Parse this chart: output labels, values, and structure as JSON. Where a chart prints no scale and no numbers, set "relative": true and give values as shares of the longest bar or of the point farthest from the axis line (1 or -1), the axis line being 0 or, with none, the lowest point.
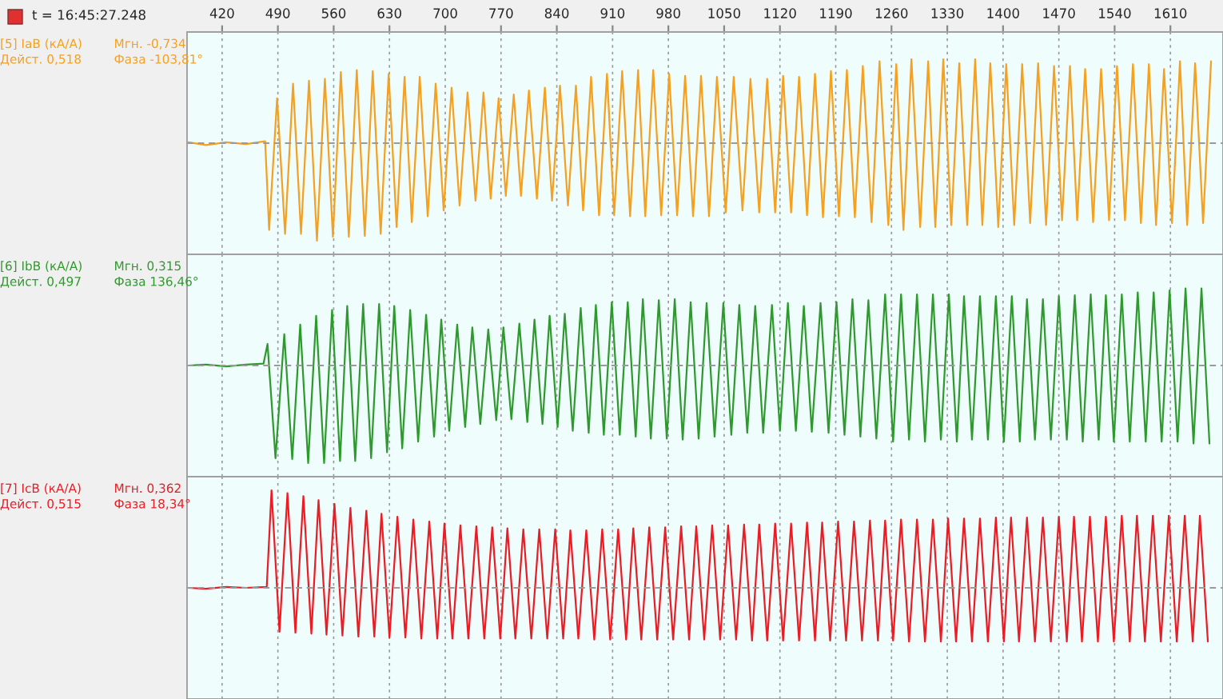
{
  "chart_data": [
    {
      "type": "line",
      "title": "t = 16:45:27.248",
      "relative": true,
      "xlim": [
        376,
        1676
      ],
      "xticks": [
        420,
        490,
        560,
        630,
        700,
        770,
        840,
        910,
        980,
        1050,
        1120,
        1190,
        1260,
        1330,
        1400,
        1470,
        1540,
        1610
      ],
      "tick_labels": "x",
      "grid": "x",
      "ref_lines": [
        {
          "axis": "y",
          "value": 0,
          "line_style": "dashed",
          "color": "#9a9a9a"
        }
      ],
      "annotations": [
        "Мгн. -0,734",
        "Дейст. 0,518",
        "Фаза -103,81°"
      ],
      "series": [
        {
          "name": "[5] IaB (кА/А)",
          "color": "#f5a01e",
          "x": [
            378,
            400,
            425,
            450,
            474,
            479,
            489,
            499,
            509,
            519,
            529,
            539,
            549,
            559,
            569,
            579,
            589,
            599,
            609,
            619,
            629,
            639,
            649,
            658,
            668,
            678,
            688,
            698,
            708,
            718,
            728,
            738,
            748,
            757,
            767,
            776,
            786,
            795,
            805,
            815,
            825,
            834,
            844,
            854,
            864,
            873,
            883,
            893,
            903,
            912,
            922,
            932,
            942,
            951,
            961,
            971,
            981,
            991,
            1001,
            1011,
            1021,
            1031,
            1041,
            1052,
            1062,
            1073,
            1083,
            1094,
            1104,
            1114,
            1124,
            1134,
            1144,
            1154,
            1164,
            1174,
            1184,
            1194,
            1204,
            1214,
            1224,
            1235,
            1245,
            1256,
            1266,
            1275,
            1285,
            1296,
            1306,
            1315,
            1325,
            1335,
            1345,
            1355,
            1365,
            1374,
            1384,
            1394,
            1404,
            1414,
            1424,
            1434,
            1444,
            1454,
            1464,
            1474,
            1484,
            1493,
            1503,
            1513,
            1523,
            1533,
            1543,
            1553,
            1563,
            1573,
            1583,
            1592,
            1602,
            1612,
            1622,
            1631,
            1641,
            1651,
            1661
          ],
          "values": [
            0.01,
            -0.02,
            0.01,
            -0.01,
            0.02,
            -0.89,
            0.46,
            -0.93,
            0.61,
            -0.93,
            0.64,
            -1,
            0.66,
            -0.96,
            0.73,
            -0.96,
            0.75,
            -0.95,
            0.74,
            -0.93,
            0.71,
            -0.86,
            0.68,
            -0.81,
            0.68,
            -0.75,
            0.61,
            -0.69,
            0.57,
            -0.64,
            0.52,
            -0.59,
            0.52,
            -0.57,
            0.46,
            -0.54,
            0.5,
            -0.54,
            0.54,
            -0.57,
            0.57,
            -0.59,
            0.59,
            -0.64,
            0.59,
            -0.69,
            0.68,
            -0.74,
            0.71,
            -0.74,
            0.74,
            -0.75,
            0.75,
            -0.75,
            0.75,
            -0.74,
            0.71,
            -0.74,
            0.69,
            -0.75,
            0.69,
            -0.75,
            0.68,
            -0.71,
            0.68,
            -0.69,
            0.66,
            -0.71,
            0.66,
            -0.71,
            0.69,
            -0.71,
            0.68,
            -0.74,
            0.71,
            -0.76,
            0.74,
            -0.75,
            0.75,
            -0.76,
            0.79,
            -0.81,
            0.84,
            -0.84,
            0.81,
            -0.89,
            0.86,
            -0.86,
            0.84,
            -0.86,
            0.86,
            -0.84,
            0.82,
            -0.84,
            0.86,
            -0.84,
            0.82,
            -0.86,
            0.81,
            -0.84,
            0.81,
            -0.82,
            0.82,
            -0.84,
            0.79,
            -0.79,
            0.79,
            -0.79,
            0.76,
            -0.81,
            0.76,
            -0.79,
            0.79,
            -0.79,
            0.81,
            -0.82,
            0.81,
            -0.84,
            0.76,
            -0.82,
            0.84,
            -0.84,
            0.82,
            -0.82,
            0.84
          ]
        }
      ]
    },
    {
      "type": "line",
      "relative": true,
      "xlim": [
        376,
        1676
      ],
      "tick_labels": false,
      "grid": "x",
      "ref_lines": [
        {
          "axis": "y",
          "value": 0,
          "line_style": "dashed",
          "color": "#9a9a9a"
        }
      ],
      "annotations": [
        "Мгн. 0,315",
        "Дейст. 0,497",
        "Фаза 136,46°"
      ],
      "series": [
        {
          "name": "[6] IbB (кА/А)",
          "color": "#2e9a2e",
          "x": [
            378,
            400,
            425,
            450,
            472,
            477,
            487,
            498,
            508,
            518,
            528,
            538,
            548,
            558,
            568,
            577,
            587,
            597,
            607,
            617,
            627,
            636,
            646,
            656,
            666,
            676,
            686,
            695,
            705,
            715,
            725,
            734,
            744,
            754,
            764,
            773,
            783,
            793,
            803,
            812,
            822,
            831,
            841,
            850,
            860,
            870,
            880,
            889,
            899,
            909,
            919,
            929,
            939,
            948,
            958,
            968,
            978,
            988,
            998,
            1008,
            1018,
            1028,
            1038,
            1049,
            1059,
            1069,
            1079,
            1089,
            1099,
            1110,
            1120,
            1130,
            1140,
            1150,
            1160,
            1171,
            1181,
            1191,
            1201,
            1211,
            1221,
            1231,
            1241,
            1252,
            1262,
            1272,
            1282,
            1292,
            1302,
            1312,
            1322,
            1332,
            1342,
            1351,
            1361,
            1371,
            1381,
            1391,
            1401,
            1411,
            1421,
            1430,
            1440,
            1450,
            1460,
            1470,
            1480,
            1490,
            1500,
            1510,
            1520,
            1529,
            1539,
            1549,
            1559,
            1569,
            1579,
            1589,
            1599,
            1609,
            1619,
            1629,
            1639,
            1649,
            1659
          ],
          "values": [
            0,
            0.01,
            -0.01,
            0.01,
            0.02,
            0.22,
            -0.95,
            0.32,
            -0.96,
            0.42,
            -1,
            0.51,
            -1,
            0.57,
            -0.98,
            0.61,
            -0.98,
            0.63,
            -0.95,
            0.63,
            -0.89,
            0.61,
            -0.85,
            0.57,
            -0.78,
            0.52,
            -0.73,
            0.47,
            -0.67,
            0.42,
            -0.63,
            0.39,
            -0.6,
            0.37,
            -0.56,
            0.39,
            -0.55,
            0.43,
            -0.58,
            0.47,
            -0.6,
            0.51,
            -0.63,
            0.53,
            -0.67,
            0.59,
            -0.69,
            0.62,
            -0.71,
            0.65,
            -0.71,
            0.65,
            -0.73,
            0.68,
            -0.75,
            0.67,
            -0.75,
            0.68,
            -0.76,
            0.65,
            -0.75,
            0.64,
            -0.73,
            0.64,
            -0.71,
            0.62,
            -0.69,
            0.61,
            -0.69,
            0.62,
            -0.67,
            0.64,
            -0.67,
            0.61,
            -0.68,
            0.64,
            -0.69,
            0.65,
            -0.71,
            0.68,
            -0.73,
            0.67,
            -0.75,
            0.73,
            -0.78,
            0.73,
            -0.76,
            0.73,
            -0.78,
            0.73,
            -0.76,
            0.73,
            -0.78,
            0.71,
            -0.76,
            0.71,
            -0.76,
            0.71,
            -0.78,
            0.71,
            -0.78,
            0.68,
            -0.76,
            0.68,
            -0.76,
            0.71,
            -0.76,
            0.72,
            -0.78,
            0.73,
            -0.76,
            0.72,
            -0.78,
            0.73,
            -0.78,
            0.75,
            -0.78,
            0.75,
            -0.78,
            0.77,
            -0.78,
            0.79,
            -0.8,
            0.79,
            -0.8
          ]
        }
      ]
    },
    {
      "type": "line",
      "relative": true,
      "xlim": [
        376,
        1676
      ],
      "tick_labels": false,
      "grid": "x",
      "ref_lines": [
        {
          "axis": "y",
          "value": 0,
          "line_style": "dashed",
          "color": "#9a9a9a"
        }
      ],
      "annotations": [
        "Мгн. 0,362",
        "Дейст. 0,515",
        "Фаза 18,34°"
      ],
      "series": [
        {
          "name": "[7] IcB (кА/А)",
          "color": "#ec1c24",
          "x": [
            378,
            400,
            425,
            450,
            476,
            482,
            492,
            502,
            512,
            522,
            532,
            541,
            551,
            561,
            571,
            581,
            591,
            601,
            611,
            620,
            630,
            640,
            650,
            660,
            670,
            680,
            690,
            699,
            709,
            719,
            729,
            739,
            749,
            759,
            769,
            778,
            788,
            798,
            808,
            818,
            828,
            838,
            848,
            857,
            867,
            877,
            887,
            897,
            907,
            917,
            927,
            936,
            946,
            956,
            966,
            976,
            986,
            996,
            1006,
            1015,
            1025,
            1035,
            1045,
            1055,
            1065,
            1075,
            1085,
            1094,
            1104,
            1114,
            1124,
            1134,
            1144,
            1154,
            1164,
            1173,
            1183,
            1193,
            1203,
            1213,
            1223,
            1233,
            1243,
            1252,
            1262,
            1272,
            1282,
            1292,
            1302,
            1312,
            1322,
            1331,
            1341,
            1351,
            1361,
            1371,
            1381,
            1391,
            1401,
            1410,
            1420,
            1430,
            1440,
            1450,
            1460,
            1470,
            1480,
            1489,
            1499,
            1509,
            1519,
            1529,
            1539,
            1549,
            1559,
            1568,
            1578,
            1588,
            1598,
            1608,
            1618,
            1628,
            1638,
            1647,
            1657
          ],
          "values": [
            0,
            -0.01,
            0.01,
            0,
            0.01,
            1,
            -0.45,
            0.97,
            -0.46,
            0.94,
            -0.47,
            0.9,
            -0.48,
            0.86,
            -0.49,
            0.82,
            -0.5,
            0.79,
            -0.5,
            0.76,
            -0.51,
            0.73,
            -0.51,
            0.7,
            -0.52,
            0.68,
            -0.52,
            0.66,
            -0.52,
            0.64,
            -0.52,
            0.63,
            -0.52,
            0.62,
            -0.52,
            0.61,
            -0.52,
            0.6,
            -0.52,
            0.6,
            -0.52,
            0.6,
            -0.52,
            0.59,
            -0.52,
            0.59,
            -0.53,
            0.6,
            -0.53,
            0.6,
            -0.53,
            0.61,
            -0.53,
            0.62,
            -0.53,
            0.62,
            -0.53,
            0.63,
            -0.53,
            0.63,
            -0.53,
            0.64,
            -0.53,
            0.64,
            -0.53,
            0.65,
            -0.54,
            0.65,
            -0.54,
            0.66,
            -0.54,
            0.66,
            -0.54,
            0.67,
            -0.54,
            0.67,
            -0.54,
            0.68,
            -0.54,
            0.68,
            -0.54,
            0.69,
            -0.54,
            0.69,
            -0.54,
            0.7,
            -0.55,
            0.7,
            -0.55,
            0.7,
            -0.55,
            0.71,
            -0.55,
            0.71,
            -0.55,
            0.71,
            -0.55,
            0.72,
            -0.55,
            0.72,
            -0.55,
            0.72,
            -0.55,
            0.72,
            -0.55,
            0.73,
            -0.55,
            0.73,
            -0.55,
            0.73,
            -0.55,
            0.73,
            -0.55,
            0.74,
            -0.55,
            0.74,
            -0.55,
            0.74,
            -0.55,
            0.74,
            -0.55,
            0.74,
            -0.55,
            0.74,
            -0.55
          ]
        }
      ]
    }
  ]
}
